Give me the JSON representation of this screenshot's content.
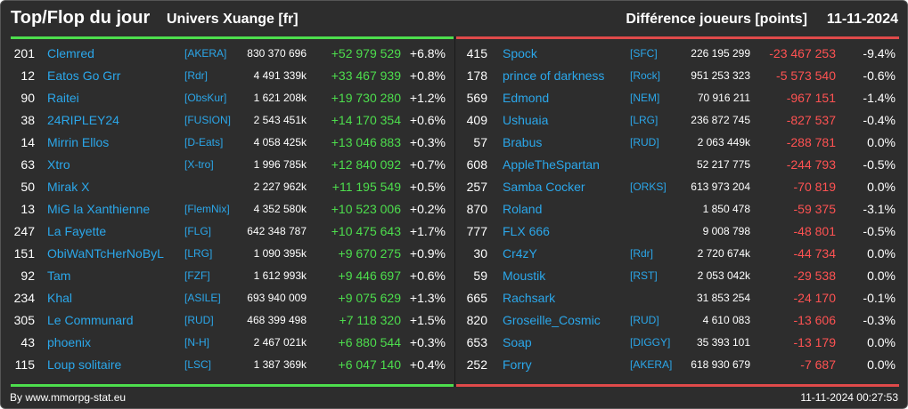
{
  "header": {
    "title": "Top/Flop du jour",
    "universe": "Univers Xuange [fr]",
    "metric": "Différence joueurs [points]",
    "date": "11-11-2024"
  },
  "colors": {
    "background": "#2d2d2d",
    "gain": "#4dde4d",
    "loss": "#ff5252",
    "link": "#2ba7ea",
    "top_bar": "#4dde4d",
    "flop_bar": "#e04a4a"
  },
  "top": [
    {
      "rank": "201",
      "name": "Clemred",
      "alliance": "[AKERA]",
      "points": "830 370 696",
      "delta": "+52 979 529",
      "pct": "+6.8%"
    },
    {
      "rank": "12",
      "name": "Eatos Go Grr",
      "alliance": "[Rdr]",
      "points": "4 491 339k",
      "delta": "+33 467 939",
      "pct": "+0.8%"
    },
    {
      "rank": "90",
      "name": "Raitei",
      "alliance": "[ObsKur]",
      "points": "1 621 208k",
      "delta": "+19 730 280",
      "pct": "+1.2%"
    },
    {
      "rank": "38",
      "name": "24RIPLEY24",
      "alliance": "[FUSION]",
      "points": "2 543 451k",
      "delta": "+14 170 354",
      "pct": "+0.6%"
    },
    {
      "rank": "14",
      "name": "Mirrin Ellos",
      "alliance": "[D-Eats]",
      "points": "4 058 425k",
      "delta": "+13 046 883",
      "pct": "+0.3%"
    },
    {
      "rank": "63",
      "name": "Xtro",
      "alliance": "[X-tro]",
      "points": "1 996 785k",
      "delta": "+12 840 092",
      "pct": "+0.7%"
    },
    {
      "rank": "50",
      "name": "Mirak X",
      "alliance": "",
      "points": "2 227 962k",
      "delta": "+11 195 549",
      "pct": "+0.5%"
    },
    {
      "rank": "13",
      "name": "MiG la Xanthienne",
      "alliance": "[FlemNix]",
      "points": "4 352 580k",
      "delta": "+10 523 006",
      "pct": "+0.2%"
    },
    {
      "rank": "247",
      "name": "La Fayette",
      "alliance": "[FLG]",
      "points": "642 348 787",
      "delta": "+10 475 643",
      "pct": "+1.7%"
    },
    {
      "rank": "151",
      "name": "ObiWaNTcHerNoByL",
      "alliance": "[LRG]",
      "points": "1 090 395k",
      "delta": "+9 670 275",
      "pct": "+0.9%"
    },
    {
      "rank": "92",
      "name": "Tam",
      "alliance": "[FZF]",
      "points": "1 612 993k",
      "delta": "+9 446 697",
      "pct": "+0.6%"
    },
    {
      "rank": "234",
      "name": "Khal",
      "alliance": "[ASILE]",
      "points": "693 940 009",
      "delta": "+9 075 629",
      "pct": "+1.3%"
    },
    {
      "rank": "305",
      "name": "Le Communard",
      "alliance": "[RUD]",
      "points": "468 399 498",
      "delta": "+7 118 320",
      "pct": "+1.5%"
    },
    {
      "rank": "43",
      "name": "phoenix",
      "alliance": "[N-H]",
      "points": "2 467 021k",
      "delta": "+6 880 544",
      "pct": "+0.3%"
    },
    {
      "rank": "115",
      "name": "Loup solitaire",
      "alliance": "[LSC]",
      "points": "1 387 369k",
      "delta": "+6 047 140",
      "pct": "+0.4%"
    }
  ],
  "flop": [
    {
      "rank": "415",
      "name": "Spock",
      "alliance": "[SFC]",
      "points": "226 195 299",
      "delta": "-23 467 253",
      "pct": "-9.4%"
    },
    {
      "rank": "178",
      "name": "prince of darkness",
      "alliance": "[Rock]",
      "points": "951 253 323",
      "delta": "-5 573 540",
      "pct": "-0.6%"
    },
    {
      "rank": "569",
      "name": "Edmond",
      "alliance": "[NEM]",
      "points": "70 916 211",
      "delta": "-967 151",
      "pct": "-1.4%"
    },
    {
      "rank": "409",
      "name": "Ushuaia",
      "alliance": "[LRG]",
      "points": "236 872 745",
      "delta": "-827 537",
      "pct": "-0.4%"
    },
    {
      "rank": "57",
      "name": "Brabus",
      "alliance": "[RUD]",
      "points": "2 063 449k",
      "delta": "-288 781",
      "pct": "0.0%"
    },
    {
      "rank": "608",
      "name": "AppleTheSpartan",
      "alliance": "",
      "points": "52 217 775",
      "delta": "-244 793",
      "pct": "-0.5%"
    },
    {
      "rank": "257",
      "name": "Samba Cocker",
      "alliance": "[ORKS]",
      "points": "613 973 204",
      "delta": "-70 819",
      "pct": "0.0%"
    },
    {
      "rank": "870",
      "name": "Roland",
      "alliance": "",
      "points": "1 850 478",
      "delta": "-59 375",
      "pct": "-3.1%"
    },
    {
      "rank": "777",
      "name": "FLX 666",
      "alliance": "",
      "points": "9 008 798",
      "delta": "-48 801",
      "pct": "-0.5%"
    },
    {
      "rank": "30",
      "name": "Cr4zY",
      "alliance": "[Rdr]",
      "points": "2 720 674k",
      "delta": "-44 734",
      "pct": "0.0%"
    },
    {
      "rank": "59",
      "name": "Moustik",
      "alliance": "[RST]",
      "points": "2 053 042k",
      "delta": "-29 538",
      "pct": "0.0%"
    },
    {
      "rank": "665",
      "name": "Rachsark",
      "alliance": "",
      "points": "31 853 254",
      "delta": "-24 170",
      "pct": "-0.1%"
    },
    {
      "rank": "820",
      "name": "Groseille_Cosmic",
      "alliance": "[RUD]",
      "points": "4 610 083",
      "delta": "-13 606",
      "pct": "-0.3%"
    },
    {
      "rank": "653",
      "name": "Soap",
      "alliance": "[DIGGY]",
      "points": "35 393 101",
      "delta": "-13 179",
      "pct": "0.0%"
    },
    {
      "rank": "252",
      "name": "Forry",
      "alliance": "[AKERA]",
      "points": "618 930 679",
      "delta": "-7 687",
      "pct": "0.0%"
    }
  ],
  "footer": {
    "source": "By www.mmorpg-stat.eu",
    "timestamp": "11-11-2024 00:27:53"
  }
}
